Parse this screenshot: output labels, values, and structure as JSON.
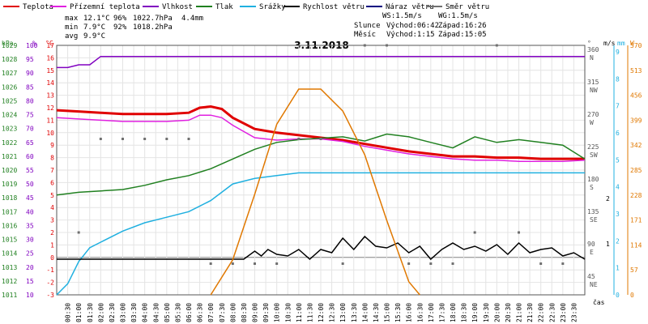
{
  "legend": [
    {
      "label": "Teplota",
      "color": "#e00000"
    },
    {
      "label": "Přízemní teplota",
      "color": "#e020e0"
    },
    {
      "label": "Vlhkost",
      "color": "#8000c0"
    },
    {
      "label": "Tlak",
      "color": "#208020"
    },
    {
      "label": "Srážky",
      "color": "#20b0e0"
    },
    {
      "label": "Rychlost větru",
      "color": "#000000"
    },
    {
      "label": "Náraz větru",
      "color": "#000080"
    },
    {
      "label": "Směr větru",
      "color": "#707070"
    }
  ],
  "stats": {
    "rows": [
      {
        "label": "max",
        "temp": "12.1°C",
        "hum": "96%",
        "pres": "1022.7hPa",
        "rain": "4.4mm"
      },
      {
        "label": "min",
        "temp": "7.9°C",
        "hum": "92%",
        "pres": "1018.2hPa",
        "rain": ""
      },
      {
        "label": "avg",
        "temp": "9.9°C",
        "hum": "",
        "pres": "",
        "rain": ""
      }
    ]
  },
  "info": {
    "ws": "WS:1.5m/s",
    "wg": "WG:1.5m/s",
    "sun_label": "Slunce",
    "sun_rise": "Východ:06:42",
    "sun_set": "Západ:16:26",
    "moon_label": "Měsíc",
    "moon_rise": "Východ:1:15",
    "moon_set": "Západ:15:05"
  },
  "title": "3.11.2018",
  "axes": {
    "units": {
      "hpa": "hPa",
      "pct": "%",
      "c": "°C",
      "deg": "°",
      "ms": "m/s",
      "mm": "mm",
      "w": "W",
      "cas": "čas"
    },
    "hpa_ticks": [
      "1029",
      "1028",
      "1027",
      "1026",
      "1025",
      "1024",
      "1023",
      "1022",
      "1021",
      "1020",
      "1019",
      "1018",
      "1017",
      "1016",
      "1015",
      "1014",
      "1013",
      "1012",
      "1011"
    ],
    "pct_ticks": [
      "100",
      "95",
      "90",
      "85",
      "80",
      "75",
      "70",
      "65",
      "60",
      "55",
      "50",
      "45",
      "40",
      "35",
      "30",
      "25",
      "20",
      "15",
      "10"
    ],
    "c_ticks": [
      "17",
      "16",
      "15",
      "14",
      "13",
      "12",
      "11",
      "10",
      "9",
      "8",
      "7",
      "6",
      "5",
      "4",
      "3",
      "2",
      "1",
      "0",
      "-1",
      "-2",
      "-3"
    ],
    "deg_ticks": [
      {
        "v": "360",
        "d": "N"
      },
      {
        "v": "315",
        "d": "NW"
      },
      {
        "v": "270",
        "d": "W"
      },
      {
        "v": "225",
        "d": "SW"
      },
      {
        "v": "180",
        "d": "S"
      },
      {
        "v": "135",
        "d": "SE"
      },
      {
        "v": "90",
        "d": "E"
      },
      {
        "v": "45",
        "d": "NE"
      }
    ],
    "ms_ticks": [
      "2",
      "1"
    ],
    "mm_ticks": [
      "9",
      "8",
      "7",
      "6",
      "5",
      "4",
      "3",
      "2",
      "1",
      "0"
    ],
    "w_ticks": [
      "570",
      "513",
      "456",
      "399",
      "342",
      "285",
      "228",
      "171",
      "114",
      "57",
      "0"
    ],
    "time_ticks": [
      "00:30",
      "01:00",
      "01:30",
      "02:00",
      "02:30",
      "03:00",
      "03:30",
      "04:00",
      "04:30",
      "05:00",
      "05:30",
      "06:00",
      "06:30",
      "07:00",
      "07:30",
      "08:00",
      "08:30",
      "09:00",
      "09:30",
      "10:00",
      "10:30",
      "11:00",
      "11:30",
      "12:00",
      "12:30",
      "13:00",
      "13:30",
      "14:00",
      "14:30",
      "15:00",
      "15:30",
      "16:00",
      "16:30",
      "17:00",
      "17:30",
      "18:00",
      "18:30",
      "19:00",
      "19:30",
      "20:00",
      "20:30",
      "21:00",
      "21:30",
      "22:00",
      "22:30",
      "23:00",
      "23:30"
    ]
  },
  "chart_data": {
    "type": "line",
    "title": "3.11.2018",
    "x_unit": "hour",
    "series": [
      {
        "name": "Teplota",
        "unit": "°C",
        "color": "#e00000",
        "x": [
          0,
          1,
          2,
          3,
          4,
          5,
          6,
          6.5,
          7,
          7.5,
          8,
          9,
          10,
          11,
          12,
          13,
          14,
          15,
          16,
          17,
          18,
          19,
          20,
          21,
          22,
          23,
          24
        ],
        "y": [
          11.8,
          11.7,
          11.6,
          11.5,
          11.5,
          11.5,
          11.6,
          12.0,
          12.1,
          11.9,
          11.2,
          10.3,
          10.0,
          9.8,
          9.6,
          9.4,
          9.1,
          8.8,
          8.5,
          8.3,
          8.1,
          8.1,
          8.0,
          8.0,
          7.9,
          7.9,
          7.9
        ]
      },
      {
        "name": "Přízemní teplota",
        "unit": "°C",
        "color": "#e020e0",
        "x": [
          0,
          1,
          2,
          3,
          4,
          5,
          6,
          6.5,
          7,
          7.5,
          8,
          9,
          10,
          11,
          12,
          13,
          14,
          15,
          16,
          17,
          18,
          19,
          20,
          21,
          22,
          23,
          24
        ],
        "y": [
          11.2,
          11.1,
          11.0,
          10.9,
          10.9,
          10.9,
          11.0,
          11.4,
          11.4,
          11.2,
          10.6,
          9.6,
          9.4,
          9.5,
          9.5,
          9.3,
          8.9,
          8.6,
          8.3,
          8.1,
          7.9,
          7.8,
          7.8,
          7.7,
          7.7,
          7.7,
          7.8
        ]
      },
      {
        "name": "Vlhkost",
        "unit": "%",
        "color": "#8000c0",
        "x": [
          0,
          0.5,
          1,
          1.5,
          2,
          24
        ],
        "y": [
          92,
          92,
          93,
          93,
          96,
          96
        ]
      },
      {
        "name": "Tlak",
        "unit": "hPa",
        "color": "#208020",
        "x": [
          0,
          1,
          2,
          3,
          4,
          5,
          6,
          7,
          8,
          9,
          10,
          11,
          12,
          13,
          14,
          15,
          16,
          17,
          18,
          19,
          20,
          21,
          22,
          23,
          24
        ],
        "y": [
          1018.2,
          1018.4,
          1018.5,
          1018.6,
          1018.9,
          1019.3,
          1019.6,
          1020.1,
          1020.8,
          1021.5,
          1022.0,
          1022.2,
          1022.3,
          1022.4,
          1022.1,
          1022.6,
          1022.4,
          1022.0,
          1021.6,
          1022.4,
          1022.0,
          1022.2,
          1022.0,
          1021.8,
          1020.8
        ]
      },
      {
        "name": "Srážky",
        "unit": "mm",
        "color": "#20b0e0",
        "x": [
          0,
          0.5,
          1,
          1.5,
          2,
          3,
          4,
          5,
          6,
          7,
          8,
          9,
          10,
          11,
          12,
          13,
          14,
          15,
          16,
          17,
          18,
          19,
          20,
          21,
          22,
          23,
          24
        ],
        "y": [
          0,
          0.4,
          1.2,
          1.7,
          1.9,
          2.3,
          2.6,
          2.8,
          3.0,
          3.4,
          4.0,
          4.2,
          4.3,
          4.4,
          4.4,
          4.4,
          4.4,
          4.4,
          4.4,
          4.4,
          4.4,
          4.4,
          4.4,
          4.4,
          4.4,
          4.4,
          4.4
        ]
      },
      {
        "name": "Rychlost větru",
        "unit": "m/s",
        "color": "#000000",
        "x": [
          0,
          8.5,
          9,
          9.3,
          9.6,
          10,
          10.5,
          11,
          11.5,
          12,
          12.5,
          13,
          13.5,
          14,
          14.5,
          15,
          15.5,
          16,
          16.5,
          17,
          17.5,
          18,
          18.5,
          19,
          19.5,
          20,
          20.5,
          21,
          21.5,
          22,
          22.5,
          23,
          23.5,
          24
        ],
        "y": [
          0,
          0,
          0.5,
          0.2,
          0.6,
          0.3,
          0.2,
          0.6,
          0,
          0.6,
          0.4,
          1.3,
          0.6,
          1.4,
          0.8,
          0.7,
          1.0,
          0.4,
          0.8,
          0,
          0.6,
          1.0,
          0.6,
          0.8,
          0.5,
          0.9,
          0.3,
          1.0,
          0.4,
          0.6,
          0.7,
          0.2,
          0.4,
          0
        ]
      },
      {
        "name": "Sluneční záření",
        "unit": "W",
        "color": "#e07800",
        "x": [
          7,
          8,
          9,
          10,
          11,
          12,
          13,
          14,
          15,
          16,
          16.5
        ],
        "y": [
          0,
          80,
          230,
          390,
          470,
          470,
          420,
          320,
          170,
          30,
          0
        ]
      }
    ],
    "wind_direction_deg": {
      "x": [
        1,
        2,
        3,
        4,
        5,
        6,
        7,
        8,
        9,
        10,
        11,
        12,
        13,
        14,
        15,
        16,
        17,
        18,
        19,
        20,
        21,
        22,
        23
      ],
      "y": [
        90,
        225,
        225,
        225,
        225,
        225,
        45,
        45,
        45,
        45,
        225,
        225,
        45,
        360,
        360,
        45,
        45,
        45,
        90,
        360,
        90,
        45,
        45
      ]
    },
    "axes": {
      "x_range": [
        0,
        24
      ],
      "y_left_c": [
        -3,
        17
      ],
      "y_left_pct": [
        10,
        100
      ],
      "y_left_hpa": [
        1011,
        1029
      ],
      "y_right_deg": [
        0,
        360
      ],
      "y_right_mm": [
        0,
        9
      ],
      "y_right_w": [
        0,
        570
      ]
    },
    "grid": true
  }
}
